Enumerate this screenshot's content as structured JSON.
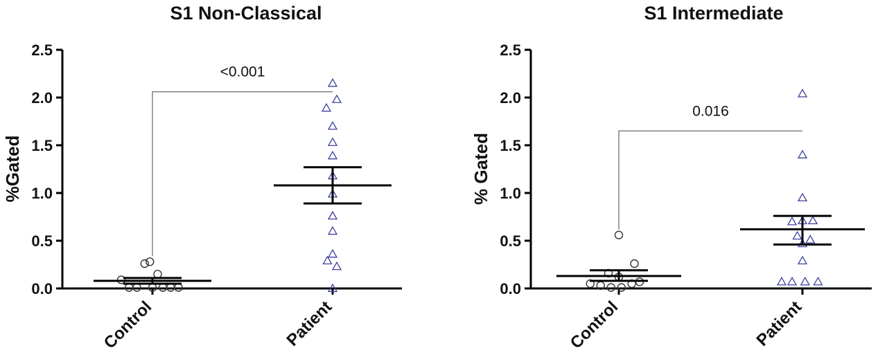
{
  "chart_data": [
    {
      "type": "scatter",
      "title": "S1 Non-Classical",
      "xlabel": "",
      "ylabel": "%Gated",
      "ylim": [
        0,
        2.5
      ],
      "yticks": [
        "0.0",
        "0.5",
        "1.0",
        "1.5",
        "2.0",
        "2.5"
      ],
      "categories": [
        "Control",
        "Patient"
      ],
      "groups": [
        {
          "category": "Control",
          "marker": "circle",
          "color": "#333333",
          "points": [
            {
              "offset": -0.6,
              "y": 0.09
            },
            {
              "offset": -0.45,
              "y": 0.01
            },
            {
              "offset": -0.3,
              "y": 0.01
            },
            {
              "offset": -0.15,
              "y": 0.26
            },
            {
              "offset": -0.05,
              "y": 0.28
            },
            {
              "offset": 0.0,
              "y": 0.01
            },
            {
              "offset": 0.1,
              "y": 0.15
            },
            {
              "offset": 0.2,
              "y": 0.01
            },
            {
              "offset": 0.35,
              "y": 0.01
            },
            {
              "offset": 0.5,
              "y": 0.01
            }
          ],
          "mean": 0.08,
          "sem_low": 0.05,
          "sem_high": 0.11
        },
        {
          "category": "Patient",
          "marker": "triangle",
          "color": "#3b3fa0",
          "points": [
            {
              "offset": 0.0,
              "y": 2.15
            },
            {
              "offset": 0.08,
              "y": 1.98
            },
            {
              "offset": -0.12,
              "y": 1.89
            },
            {
              "offset": 0.0,
              "y": 1.7
            },
            {
              "offset": 0.0,
              "y": 1.53
            },
            {
              "offset": 0.0,
              "y": 1.39
            },
            {
              "offset": 0.0,
              "y": 1.18
            },
            {
              "offset": 0.0,
              "y": 0.99
            },
            {
              "offset": 0.0,
              "y": 0.76
            },
            {
              "offset": 0.0,
              "y": 0.6
            },
            {
              "offset": 0.0,
              "y": 0.36
            },
            {
              "offset": -0.1,
              "y": 0.29
            },
            {
              "offset": 0.08,
              "y": 0.23
            },
            {
              "offset": 0.0,
              "y": 0.0
            }
          ],
          "mean": 1.08,
          "sem_low": 0.89,
          "sem_high": 1.27
        }
      ],
      "annotation": {
        "text": "<0.001",
        "from": "Control",
        "to": "Patient",
        "y": 2.06
      }
    },
    {
      "type": "scatter",
      "title": "S1 Intermediate",
      "xlabel": "",
      "ylabel": "% Gated",
      "ylim": [
        0,
        2.5
      ],
      "yticks": [
        "0.0",
        "0.5",
        "1.0",
        "1.5",
        "2.0",
        "2.5"
      ],
      "categories": [
        "Control",
        "Patient"
      ],
      "groups": [
        {
          "category": "Control",
          "marker": "circle",
          "color": "#333333",
          "points": [
            {
              "offset": 0.0,
              "y": 0.56
            },
            {
              "offset": 0.3,
              "y": 0.26
            },
            {
              "offset": -0.2,
              "y": 0.16
            },
            {
              "offset": 0.0,
              "y": 0.12
            },
            {
              "offset": -0.55,
              "y": 0.05
            },
            {
              "offset": -0.35,
              "y": 0.03
            },
            {
              "offset": -0.15,
              "y": 0.01
            },
            {
              "offset": 0.05,
              "y": 0.01
            },
            {
              "offset": 0.25,
              "y": 0.05
            },
            {
              "offset": 0.4,
              "y": 0.07
            }
          ],
          "mean": 0.13,
          "sem_low": 0.08,
          "sem_high": 0.19
        },
        {
          "category": "Patient",
          "marker": "triangle",
          "color": "#3b3fa0",
          "points": [
            {
              "offset": 0.0,
              "y": 2.04
            },
            {
              "offset": 0.0,
              "y": 1.4
            },
            {
              "offset": 0.0,
              "y": 0.95
            },
            {
              "offset": -0.2,
              "y": 0.7
            },
            {
              "offset": 0.0,
              "y": 0.71
            },
            {
              "offset": 0.2,
              "y": 0.71
            },
            {
              "offset": -0.1,
              "y": 0.55
            },
            {
              "offset": 0.0,
              "y": 0.47
            },
            {
              "offset": 0.15,
              "y": 0.51
            },
            {
              "offset": 0.0,
              "y": 0.29
            },
            {
              "offset": -0.4,
              "y": 0.07
            },
            {
              "offset": -0.2,
              "y": 0.07
            },
            {
              "offset": 0.05,
              "y": 0.07
            },
            {
              "offset": 0.3,
              "y": 0.07
            }
          ],
          "mean": 0.62,
          "sem_low": 0.46,
          "sem_high": 0.76
        }
      ],
      "annotation": {
        "text": "0.016",
        "from": "Control",
        "to": "Patient",
        "y": 1.65
      }
    }
  ]
}
